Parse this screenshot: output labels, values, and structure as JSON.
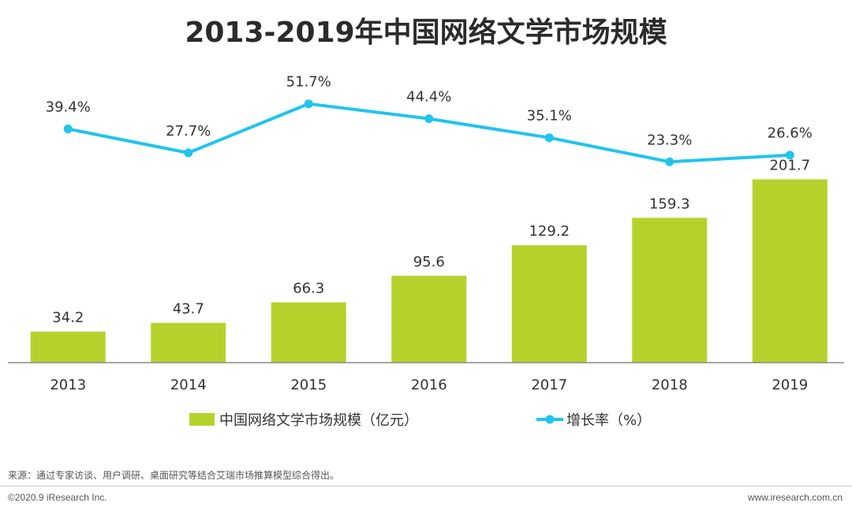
{
  "title": "2013-2019年中国网络文学市场规模",
  "colors": {
    "bar": "#b5d22c",
    "line": "#20c4ec",
    "axis": "#888888",
    "text": "#333333"
  },
  "chart_data": {
    "type": "bar+line",
    "title": "2013-2019年中国网络文学市场规模",
    "categories": [
      "2013",
      "2014",
      "2015",
      "2016",
      "2017",
      "2018",
      "2019"
    ],
    "series": [
      {
        "name": "中国网络文学市场规模（亿元）",
        "type": "bar",
        "values": [
          34.2,
          43.7,
          66.3,
          95.6,
          129.2,
          159.3,
          201.7
        ],
        "labels": [
          "34.2",
          "43.7",
          "66.3",
          "95.6",
          "129.2",
          "159.3",
          "201.7"
        ]
      },
      {
        "name": "增长率（%）",
        "type": "line",
        "values": [
          39.4,
          27.7,
          51.7,
          44.4,
          35.1,
          23.3,
          26.6
        ],
        "labels": [
          "39.4%",
          "27.7%",
          "51.7%",
          "44.4%",
          "35.1%",
          "23.3%",
          "26.6%"
        ]
      }
    ],
    "legend_position": "bottom"
  },
  "footer": {
    "source": "来源：通过专家访谈、用户调研、桌面研究等结合艾瑞市场推算模型综合得出。",
    "copyright": "©2020.9 iResearch Inc.",
    "url": "www.iresearch.com.cn"
  }
}
